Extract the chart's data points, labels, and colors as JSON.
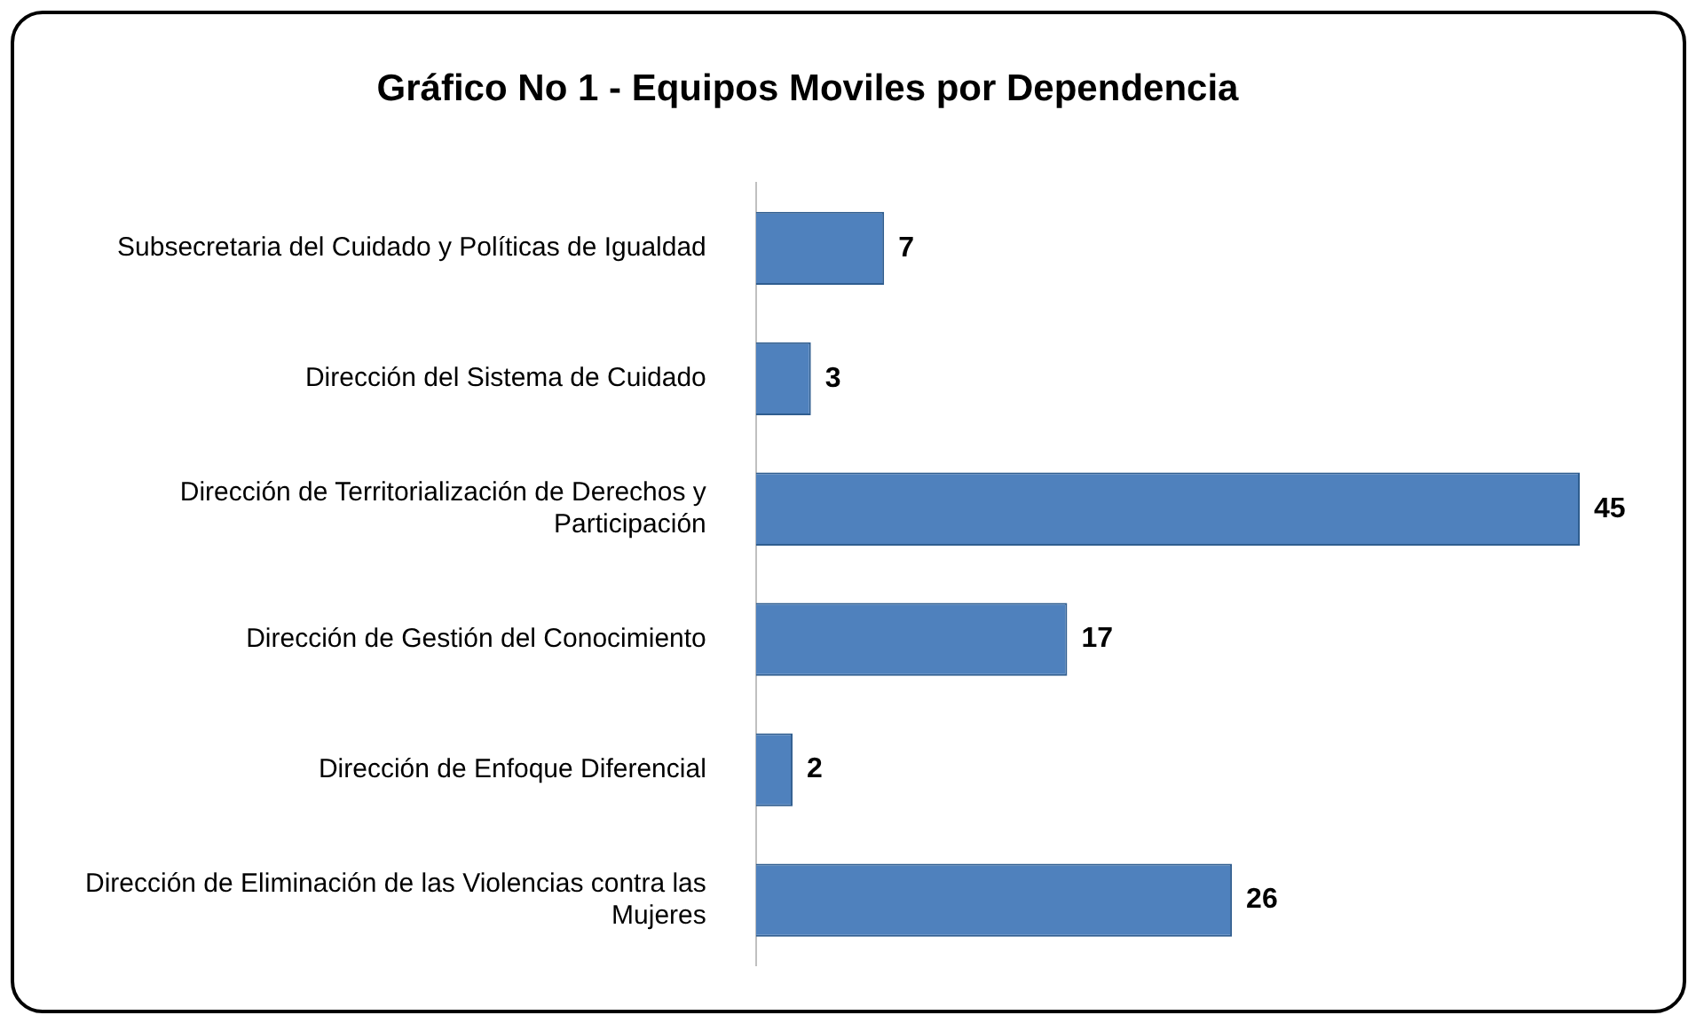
{
  "chart_data": {
    "type": "bar",
    "orientation": "horizontal",
    "title": "Gráfico No 1 - Equipos Moviles por Dependencia",
    "categories": [
      "Subsecretaria del Cuidado y Políticas de Igualdad",
      "Dirección del Sistema de Cuidado",
      "Dirección de Territorialización de Derechos y Participación",
      "Dirección de Gestión del Conocimiento",
      "Dirección de Enfoque Diferencial",
      "Dirección de Eliminación de las Violencias contra las Mujeres"
    ],
    "values": [
      7,
      3,
      45,
      17,
      2,
      26
    ],
    "color": "#4f81bd",
    "data_labels": true,
    "grid": false,
    "legend": false,
    "tick_labels": "y"
  }
}
